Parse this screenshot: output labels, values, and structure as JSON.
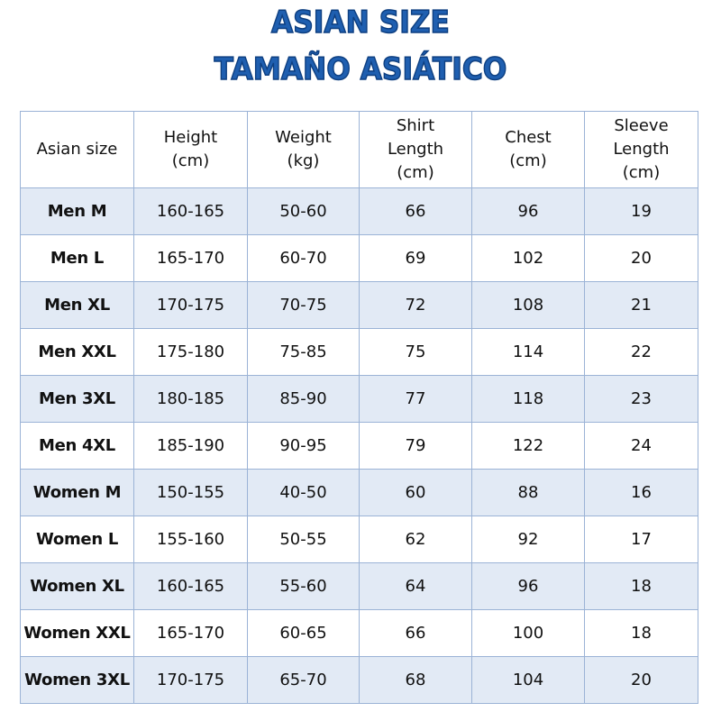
{
  "titles": {
    "line1": "ASIAN SIZE",
    "line2": "TAMAÑO ASIÁTICO"
  },
  "colors": {
    "title": "#1f5fb0",
    "row_shade": "#e2eaf5",
    "border": "#9bb3d6"
  },
  "table": {
    "headers": [
      [
        "Asian size"
      ],
      [
        "Height",
        "(cm)"
      ],
      [
        "Weight",
        "(kg)"
      ],
      [
        "Shirt",
        "Length",
        "(cm)"
      ],
      [
        "Chest",
        "(cm)"
      ],
      [
        "Sleeve",
        "Length",
        "(cm)"
      ]
    ],
    "rows": [
      {
        "size": "Men M",
        "height": "160-165",
        "weight": "50-60",
        "shirt_length": "66",
        "chest": "96",
        "sleeve_length": "19"
      },
      {
        "size": "Men L",
        "height": "165-170",
        "weight": "60-70",
        "shirt_length": "69",
        "chest": "102",
        "sleeve_length": "20"
      },
      {
        "size": "Men XL",
        "height": "170-175",
        "weight": "70-75",
        "shirt_length": "72",
        "chest": "108",
        "sleeve_length": "21"
      },
      {
        "size": "Men XXL",
        "height": "175-180",
        "weight": "75-85",
        "shirt_length": "75",
        "chest": "114",
        "sleeve_length": "22"
      },
      {
        "size": "Men 3XL",
        "height": "180-185",
        "weight": "85-90",
        "shirt_length": "77",
        "chest": "118",
        "sleeve_length": "23"
      },
      {
        "size": "Men 4XL",
        "height": "185-190",
        "weight": "90-95",
        "shirt_length": "79",
        "chest": "122",
        "sleeve_length": "24"
      },
      {
        "size": "Women M",
        "height": "150-155",
        "weight": "40-50",
        "shirt_length": "60",
        "chest": "88",
        "sleeve_length": "16"
      },
      {
        "size": "Women L",
        "height": "155-160",
        "weight": "50-55",
        "shirt_length": "62",
        "chest": "92",
        "sleeve_length": "17"
      },
      {
        "size": "Women XL",
        "height": "160-165",
        "weight": "55-60",
        "shirt_length": "64",
        "chest": "96",
        "sleeve_length": "18"
      },
      {
        "size": "Women XXL",
        "height": "165-170",
        "weight": "60-65",
        "shirt_length": "66",
        "chest": "100",
        "sleeve_length": "18"
      },
      {
        "size": "Women 3XL",
        "height": "170-175",
        "weight": "65-70",
        "shirt_length": "68",
        "chest": "104",
        "sleeve_length": "20"
      }
    ]
  }
}
